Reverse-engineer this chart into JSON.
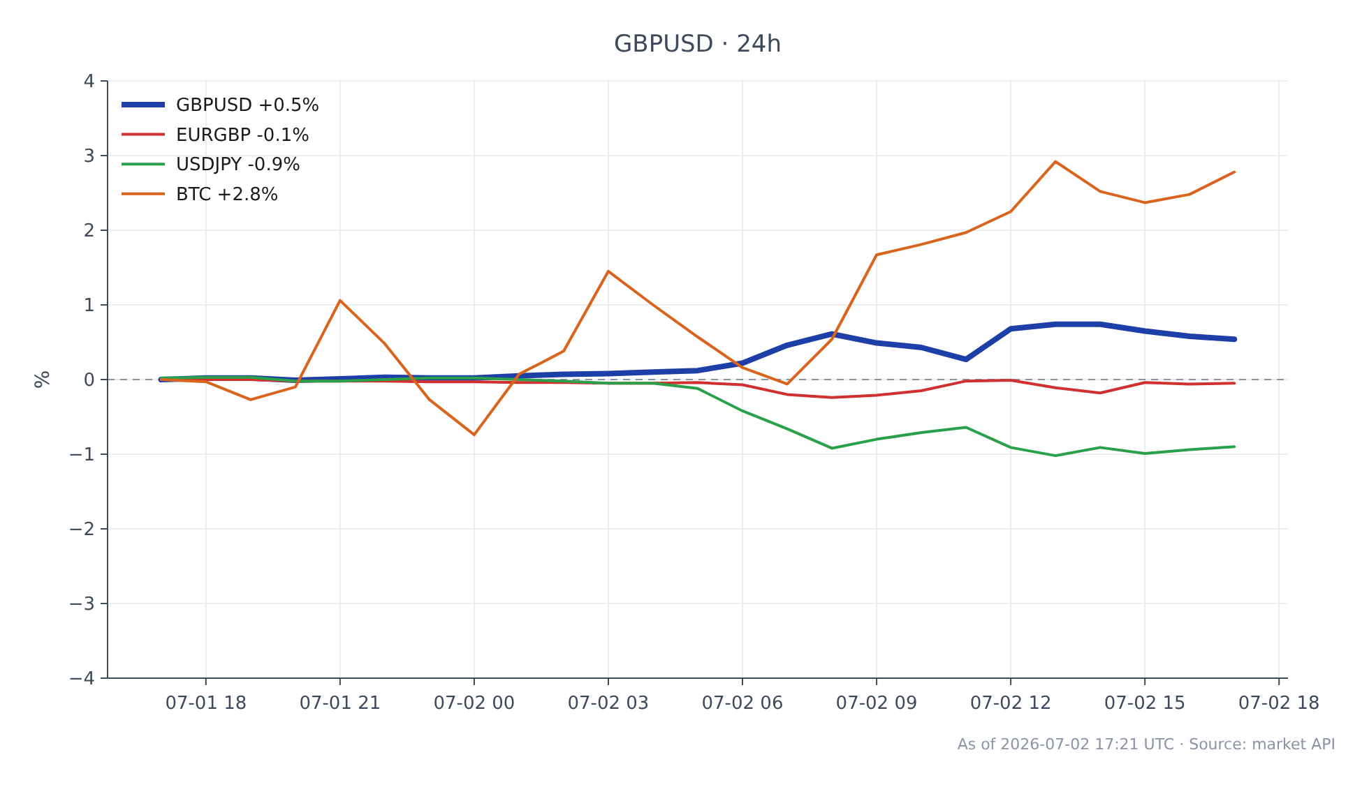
{
  "chart_data": {
    "type": "line",
    "title": "GBPUSD · 24h",
    "ylabel": "%",
    "x": [
      "2026-07-01T17:00",
      "2026-07-01T18:00",
      "2026-07-01T19:00",
      "2026-07-01T20:00",
      "2026-07-01T21:00",
      "2026-07-01T22:00",
      "2026-07-01T23:00",
      "2026-07-02T00:00",
      "2026-07-02T01:00",
      "2026-07-02T02:00",
      "2026-07-02T03:00",
      "2026-07-02T04:00",
      "2026-07-02T05:00",
      "2026-07-02T06:00",
      "2026-07-02T07:00",
      "2026-07-02T08:00",
      "2026-07-02T09:00",
      "2026-07-02T10:00",
      "2026-07-02T11:00",
      "2026-07-02T12:00",
      "2026-07-02T13:00",
      "2026-07-02T14:00",
      "2026-07-02T15:00",
      "2026-07-02T16:00",
      "2026-07-02T17:00"
    ],
    "series": [
      {
        "name": "GBPUSD +0.5%",
        "color": "#1e3fa8",
        "values": [
          0.0,
          0.02,
          0.02,
          -0.01,
          0.01,
          0.03,
          0.02,
          0.02,
          0.05,
          0.07,
          0.08,
          0.1,
          0.12,
          0.22,
          0.46,
          0.61,
          0.49,
          0.43,
          0.27,
          0.68,
          0.74,
          0.74,
          0.65,
          0.58,
          0.54
        ]
      },
      {
        "name": "EURGBP -0.1%",
        "color": "#d03030",
        "values": [
          0.0,
          0.0,
          0.0,
          -0.02,
          -0.02,
          -0.02,
          -0.03,
          -0.03,
          -0.04,
          -0.04,
          -0.05,
          -0.05,
          -0.04,
          -0.07,
          -0.2,
          -0.24,
          -0.21,
          -0.15,
          -0.02,
          -0.01,
          -0.11,
          -0.18,
          -0.04,
          -0.06,
          -0.05
        ]
      },
      {
        "name": "USDJPY -0.9%",
        "color": "#2aa04a",
        "values": [
          0.02,
          0.03,
          0.03,
          -0.02,
          -0.02,
          0.0,
          0.02,
          0.02,
          0.0,
          -0.02,
          -0.05,
          -0.05,
          -0.12,
          -0.42,
          -0.66,
          -0.92,
          -0.8,
          -0.71,
          -0.64,
          -0.91,
          -1.02,
          -0.91,
          -0.99,
          -0.94,
          -0.9
        ]
      },
      {
        "name": "BTC +2.8%",
        "color": "#d9641e",
        "values": [
          0.0,
          -0.03,
          -0.27,
          -0.1,
          1.06,
          0.48,
          -0.27,
          -0.74,
          0.07,
          0.38,
          1.45,
          1.0,
          0.57,
          0.16,
          -0.06,
          0.54,
          1.67,
          1.81,
          1.97,
          2.25,
          2.92,
          2.52,
          2.37,
          2.48,
          2.78
        ]
      }
    ],
    "xlim": [
      "2026-07-01T15:48",
      "2026-07-02T18:12"
    ],
    "xticks": [
      {
        "value": "2026-07-01T18:00",
        "label": "07-01 18"
      },
      {
        "value": "2026-07-01T21:00",
        "label": "07-01 21"
      },
      {
        "value": "2026-07-02T00:00",
        "label": "07-02 00"
      },
      {
        "value": "2026-07-02T03:00",
        "label": "07-02 03"
      },
      {
        "value": "2026-07-02T06:00",
        "label": "07-02 06"
      },
      {
        "value": "2026-07-02T09:00",
        "label": "07-02 09"
      },
      {
        "value": "2026-07-02T12:00",
        "label": "07-02 12"
      },
      {
        "value": "2026-07-02T15:00",
        "label": "07-02 15"
      },
      {
        "value": "2026-07-02T18:00",
        "label": "07-02 18"
      }
    ],
    "ylim": [
      -4,
      4
    ],
    "yticks": [
      {
        "value": -4,
        "label": "−4"
      },
      {
        "value": -3,
        "label": "−3"
      },
      {
        "value": -2,
        "label": "−2"
      },
      {
        "value": -1,
        "label": "−1"
      },
      0,
      1,
      2,
      3,
      4
    ],
    "ref_lines": [
      {
        "axis": "y",
        "value": 0,
        "color": "#8a94a6",
        "line_style": "dashed"
      }
    ],
    "grid": true,
    "legend": "top left",
    "annotations": [
      "As of 2026-07-02 17:21 UTC · Source: market API"
    ]
  }
}
